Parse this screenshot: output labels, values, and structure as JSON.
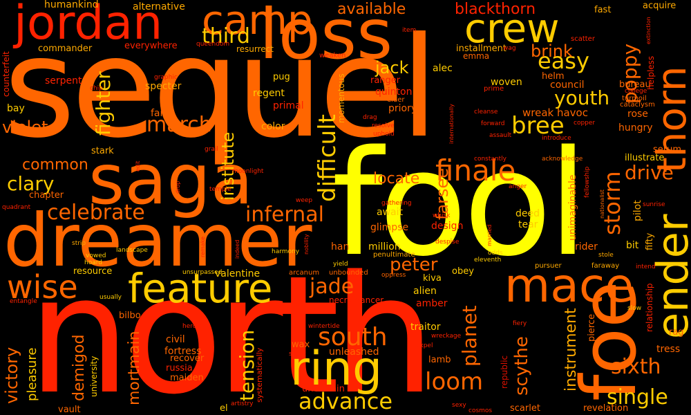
{
  "words": {
    "sequel": "sequel",
    "north": "north",
    "fool": "fool",
    "loss": "loss",
    "dreamer": "dreamer",
    "saga": "saga",
    "jordan": "jordan",
    "camp": "camp",
    "crew": "crew",
    "ender": "ender",
    "thorn": "thorn",
    "foe": "foe",
    "mace": "mace",
    "feature": "feature",
    "ring": "ring",
    "finale": "finale",
    "wise": "wise",
    "infernal": "infernal",
    "celebrate": "celebrate",
    "difficult": "difficult",
    "south": "south",
    "advance": "advance",
    "loom": "loom",
    "single": "single",
    "sixth": "sixth",
    "drive": "drive",
    "storm": "storm",
    "bree": "bree",
    "youth": "youth",
    "easy": "easy",
    "brink": "brink",
    "poppy": "poppy",
    "march": "march",
    "fighter": "fighter",
    "violet": "violet",
    "clary": "clary",
    "common": "common",
    "victory": "victory",
    "pleasure": "pleasure",
    "demigod": "demigod",
    "mortmain": "mortmain",
    "tension": "tension",
    "planet": "planet",
    "scythe": "scythe",
    "instrument": "instrument",
    "jade": "jade",
    "peter": "peter",
    "third": "third",
    "institute": "institute",
    "jack": "jack",
    "farseer": "farseer",
    "locate": "locate",
    "available": "available",
    "blackthorn": "blackthorn",
    "humankind": "humankind",
    "alternative": "alternative",
    "fast": "fast",
    "acquire": "acquire",
    "commander": "commander",
    "everywhere": "everywhere",
    "resurrect": "resurrect",
    "installment": "installment",
    "counterfeit": "counterfeit",
    "serpent": "serpent",
    "specter": "specter",
    "bay": "bay",
    "faith": "faith",
    "stark": "stark",
    "chapter": "chapter",
    "regent": "regent",
    "primal": "primal",
    "color": "color",
    "pug": "pug",
    "ranger": "ranger",
    "quinton": "quinton",
    "priory": "priory",
    "alec": "alec",
    "woven": "woven",
    "council": "council",
    "bureau": "bureau",
    "rose": "rose",
    "hungry": "hungry",
    "wreak_havoc": "wreak havoc",
    "serum": "serum",
    "illustrate": "illustrate",
    "await": "await",
    "glimpse": "glimpse",
    "design": "design",
    "deed": "deed",
    "tear": "tear",
    "pilot": "pilot",
    "bit": "bit",
    "rider": "rider",
    "han": "han",
    "million": "million",
    "resource": "resource",
    "valentine": "valentine",
    "necromancer": "necromancer",
    "kiva": "kiva",
    "alien": "alien",
    "amber": "amber",
    "obey": "obey",
    "traitor": "traitor",
    "wax": "wax",
    "unleashed": "unleashed",
    "lamb": "lamb",
    "uncertain": "uncertain",
    "civil": "civil",
    "fortress": "fortress",
    "recover": "recover",
    "maiden": "maiden",
    "russia": "russia",
    "bilbo": "bilbo",
    "vault": "vault",
    "el": "el",
    "scarlet": "scarlet",
    "revelation": "revelation",
    "tress": "tress",
    "rag": "rag",
    "pierce": "pierce",
    "republic": "republic",
    "university": "university",
    "systematically": "systematically",
    "emma": "emma",
    "helm": "helm",
    "momentous": "momentous",
    "elder": "elder",
    "unimaginable": "unimaginable",
    "fifty": "fifty",
    "relationship": "relationship",
    "helpless": "helpless",
    "weaken": "weaken",
    "item": "item",
    "wag": "wag",
    "scatter": "scatter",
    "extinction": "extinction",
    "queendom": "queendom",
    "chip": "chip",
    "graphic": "graphic",
    "prime": "prime",
    "turmoil": "turmoil",
    "cataclysm": "cataclysm",
    "college": "college",
    "cleanse": "cleanse",
    "forward": "forward",
    "copper": "copper",
    "assault": "assault",
    "introduce": "introduce",
    "acknowledge": "acknowledge",
    "fellowship": "fellowship",
    "nationalist": "nationalist",
    "sunrise": "sunrise",
    "resolve": "resolve",
    "uphold": "uphold",
    "drag": "drag",
    "internationally": "internationally",
    "constantly": "constantly",
    "grail": "grail",
    "moonlight": "moonlight",
    "edit": "edit",
    "drop": "drop",
    "temple": "temple",
    "anger": "anger",
    "quadrant": "quadrant",
    "weep": "weep",
    "gathering": "gathering",
    "whisk": "whisk",
    "despise": "despise",
    "strip": "strip",
    "landscape": "landscape",
    "vowed": "vowed",
    "hoard": "hoard",
    "remake": "remake",
    "indeed": "indeed",
    "harmony": "harmony",
    "nobility": "nobility",
    "penultimate": "penultimate",
    "odds": "odds",
    "married": "married",
    "eleventh": "eleventh",
    "yield": "yield",
    "pursuer": "pursuer",
    "faraway": "faraway",
    "stole": "stole",
    "intend": "intend",
    "slow": "slow",
    "unsurpassed": "unsurpassed",
    "arcanum": "arcanum",
    "unbounded": "unbounded",
    "oppress": "oppress",
    "usually": "usually",
    "entangle": "entangle",
    "heroic": "heroic",
    "wintertide": "wintertide",
    "wreckage": "wreckage",
    "fiery": "fiery",
    "silent": "silent",
    "expel": "expel",
    "artistry": "artistry",
    "sexy": "sexy",
    "cosmos": "cosmos"
  }
}
